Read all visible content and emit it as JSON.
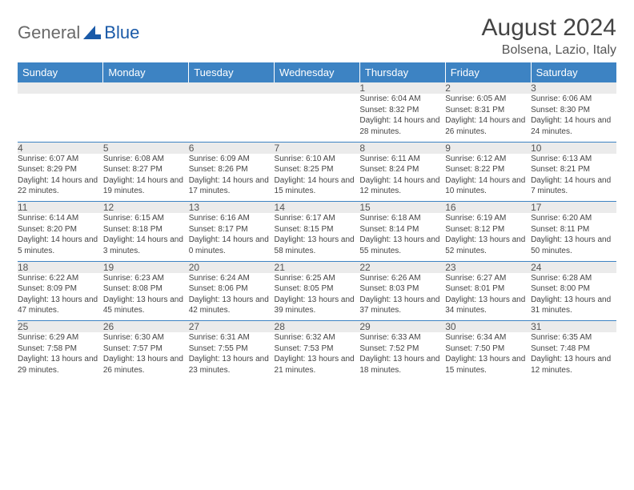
{
  "brand": {
    "left": "General",
    "right": "Blue"
  },
  "title": "August 2024",
  "location": "Bolsena, Lazio, Italy",
  "colors": {
    "header_bg": "#3d83c3",
    "header_text": "#ffffff",
    "daynum_bg": "#ebebeb",
    "separator": "#3d83c3",
    "text": "#444444",
    "logo_gray": "#6a6a6a",
    "logo_blue": "#1a5aa8",
    "title_color": "#444444",
    "location_color": "#555555",
    "page_bg": "#ffffff"
  },
  "fonts": {
    "title_size": 30,
    "location_size": 16,
    "dayheader_size": 13,
    "daynum_size": 12,
    "cell_size": 10
  },
  "dayHeaders": [
    "Sunday",
    "Monday",
    "Tuesday",
    "Wednesday",
    "Thursday",
    "Friday",
    "Saturday"
  ],
  "weeks": [
    [
      {
        "n": "",
        "sunrise": "",
        "sunset": "",
        "daylight": ""
      },
      {
        "n": "",
        "sunrise": "",
        "sunset": "",
        "daylight": ""
      },
      {
        "n": "",
        "sunrise": "",
        "sunset": "",
        "daylight": ""
      },
      {
        "n": "",
        "sunrise": "",
        "sunset": "",
        "daylight": ""
      },
      {
        "n": "1",
        "sunrise": "Sunrise: 6:04 AM",
        "sunset": "Sunset: 8:32 PM",
        "daylight": "Daylight: 14 hours and 28 minutes."
      },
      {
        "n": "2",
        "sunrise": "Sunrise: 6:05 AM",
        "sunset": "Sunset: 8:31 PM",
        "daylight": "Daylight: 14 hours and 26 minutes."
      },
      {
        "n": "3",
        "sunrise": "Sunrise: 6:06 AM",
        "sunset": "Sunset: 8:30 PM",
        "daylight": "Daylight: 14 hours and 24 minutes."
      }
    ],
    [
      {
        "n": "4",
        "sunrise": "Sunrise: 6:07 AM",
        "sunset": "Sunset: 8:29 PM",
        "daylight": "Daylight: 14 hours and 22 minutes."
      },
      {
        "n": "5",
        "sunrise": "Sunrise: 6:08 AM",
        "sunset": "Sunset: 8:27 PM",
        "daylight": "Daylight: 14 hours and 19 minutes."
      },
      {
        "n": "6",
        "sunrise": "Sunrise: 6:09 AM",
        "sunset": "Sunset: 8:26 PM",
        "daylight": "Daylight: 14 hours and 17 minutes."
      },
      {
        "n": "7",
        "sunrise": "Sunrise: 6:10 AM",
        "sunset": "Sunset: 8:25 PM",
        "daylight": "Daylight: 14 hours and 15 minutes."
      },
      {
        "n": "8",
        "sunrise": "Sunrise: 6:11 AM",
        "sunset": "Sunset: 8:24 PM",
        "daylight": "Daylight: 14 hours and 12 minutes."
      },
      {
        "n": "9",
        "sunrise": "Sunrise: 6:12 AM",
        "sunset": "Sunset: 8:22 PM",
        "daylight": "Daylight: 14 hours and 10 minutes."
      },
      {
        "n": "10",
        "sunrise": "Sunrise: 6:13 AM",
        "sunset": "Sunset: 8:21 PM",
        "daylight": "Daylight: 14 hours and 7 minutes."
      }
    ],
    [
      {
        "n": "11",
        "sunrise": "Sunrise: 6:14 AM",
        "sunset": "Sunset: 8:20 PM",
        "daylight": "Daylight: 14 hours and 5 minutes."
      },
      {
        "n": "12",
        "sunrise": "Sunrise: 6:15 AM",
        "sunset": "Sunset: 8:18 PM",
        "daylight": "Daylight: 14 hours and 3 minutes."
      },
      {
        "n": "13",
        "sunrise": "Sunrise: 6:16 AM",
        "sunset": "Sunset: 8:17 PM",
        "daylight": "Daylight: 14 hours and 0 minutes."
      },
      {
        "n": "14",
        "sunrise": "Sunrise: 6:17 AM",
        "sunset": "Sunset: 8:15 PM",
        "daylight": "Daylight: 13 hours and 58 minutes."
      },
      {
        "n": "15",
        "sunrise": "Sunrise: 6:18 AM",
        "sunset": "Sunset: 8:14 PM",
        "daylight": "Daylight: 13 hours and 55 minutes."
      },
      {
        "n": "16",
        "sunrise": "Sunrise: 6:19 AM",
        "sunset": "Sunset: 8:12 PM",
        "daylight": "Daylight: 13 hours and 52 minutes."
      },
      {
        "n": "17",
        "sunrise": "Sunrise: 6:20 AM",
        "sunset": "Sunset: 8:11 PM",
        "daylight": "Daylight: 13 hours and 50 minutes."
      }
    ],
    [
      {
        "n": "18",
        "sunrise": "Sunrise: 6:22 AM",
        "sunset": "Sunset: 8:09 PM",
        "daylight": "Daylight: 13 hours and 47 minutes."
      },
      {
        "n": "19",
        "sunrise": "Sunrise: 6:23 AM",
        "sunset": "Sunset: 8:08 PM",
        "daylight": "Daylight: 13 hours and 45 minutes."
      },
      {
        "n": "20",
        "sunrise": "Sunrise: 6:24 AM",
        "sunset": "Sunset: 8:06 PM",
        "daylight": "Daylight: 13 hours and 42 minutes."
      },
      {
        "n": "21",
        "sunrise": "Sunrise: 6:25 AM",
        "sunset": "Sunset: 8:05 PM",
        "daylight": "Daylight: 13 hours and 39 minutes."
      },
      {
        "n": "22",
        "sunrise": "Sunrise: 6:26 AM",
        "sunset": "Sunset: 8:03 PM",
        "daylight": "Daylight: 13 hours and 37 minutes."
      },
      {
        "n": "23",
        "sunrise": "Sunrise: 6:27 AM",
        "sunset": "Sunset: 8:01 PM",
        "daylight": "Daylight: 13 hours and 34 minutes."
      },
      {
        "n": "24",
        "sunrise": "Sunrise: 6:28 AM",
        "sunset": "Sunset: 8:00 PM",
        "daylight": "Daylight: 13 hours and 31 minutes."
      }
    ],
    [
      {
        "n": "25",
        "sunrise": "Sunrise: 6:29 AM",
        "sunset": "Sunset: 7:58 PM",
        "daylight": "Daylight: 13 hours and 29 minutes."
      },
      {
        "n": "26",
        "sunrise": "Sunrise: 6:30 AM",
        "sunset": "Sunset: 7:57 PM",
        "daylight": "Daylight: 13 hours and 26 minutes."
      },
      {
        "n": "27",
        "sunrise": "Sunrise: 6:31 AM",
        "sunset": "Sunset: 7:55 PM",
        "daylight": "Daylight: 13 hours and 23 minutes."
      },
      {
        "n": "28",
        "sunrise": "Sunrise: 6:32 AM",
        "sunset": "Sunset: 7:53 PM",
        "daylight": "Daylight: 13 hours and 21 minutes."
      },
      {
        "n": "29",
        "sunrise": "Sunrise: 6:33 AM",
        "sunset": "Sunset: 7:52 PM",
        "daylight": "Daylight: 13 hours and 18 minutes."
      },
      {
        "n": "30",
        "sunrise": "Sunrise: 6:34 AM",
        "sunset": "Sunset: 7:50 PM",
        "daylight": "Daylight: 13 hours and 15 minutes."
      },
      {
        "n": "31",
        "sunrise": "Sunrise: 6:35 AM",
        "sunset": "Sunset: 7:48 PM",
        "daylight": "Daylight: 13 hours and 12 minutes."
      }
    ]
  ]
}
